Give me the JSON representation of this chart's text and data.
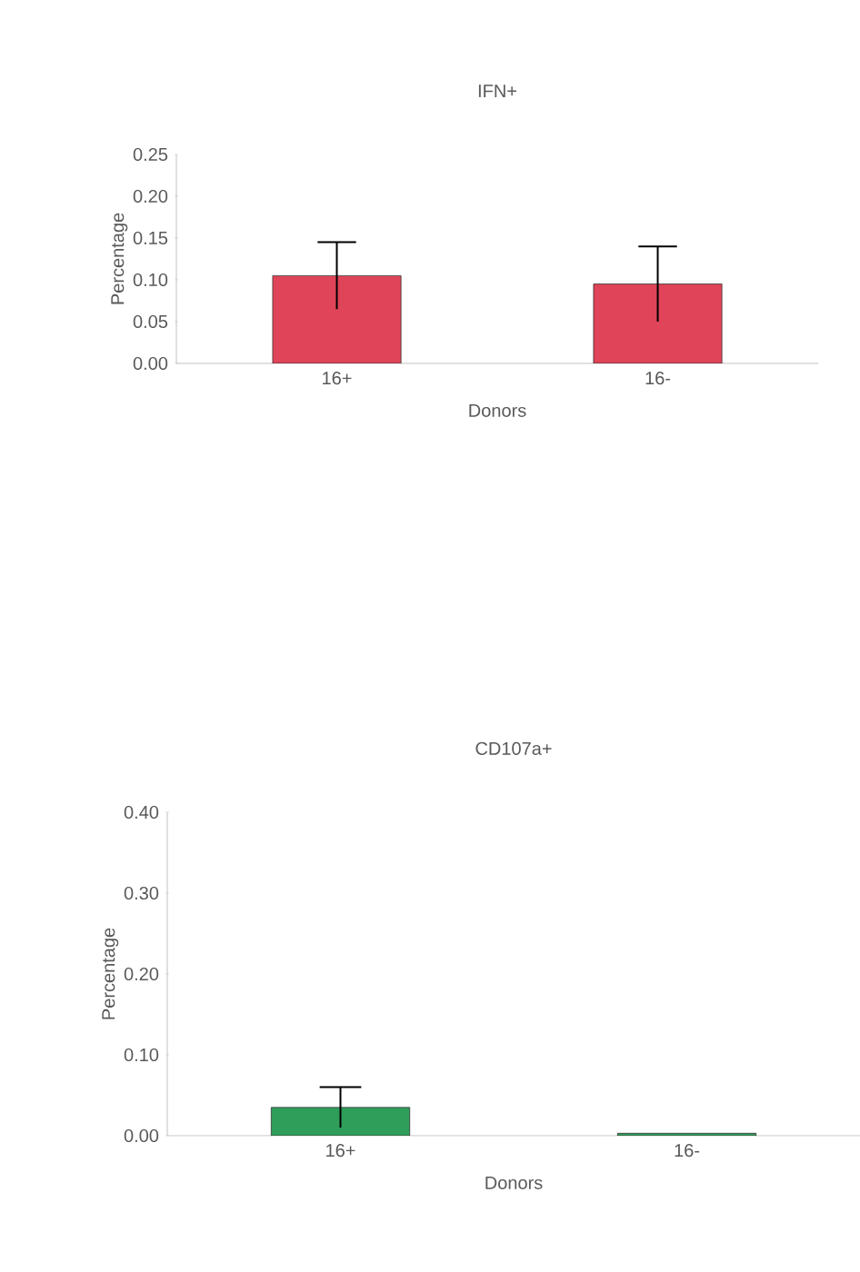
{
  "chart_data": [
    {
      "type": "bar",
      "title": "IFN+",
      "xlabel": "Donors",
      "ylabel": "Percentage",
      "categories": [
        "16+",
        "16-"
      ],
      "values": [
        0.105,
        0.095
      ],
      "errors": [
        0.04,
        0.045
      ],
      "color": "#e04458",
      "ylim": [
        0,
        0.25
      ],
      "yticks": [
        {
          "value": 0,
          "label": "0.00"
        },
        {
          "value": 0.05,
          "label": "0.05"
        },
        {
          "value": 0.1,
          "label": "0.10"
        },
        {
          "value": 0.15,
          "label": "0.15"
        },
        {
          "value": 0.2,
          "label": "0.20"
        },
        {
          "value": 0.25,
          "label": "0.25"
        }
      ]
    },
    {
      "type": "bar",
      "title": "CD107a+",
      "xlabel": "Donors",
      "ylabel": "Percentage",
      "categories": [
        "16+",
        "16-"
      ],
      "values": [
        0.035,
        0.003
      ],
      "errors": [
        0.025,
        null
      ],
      "color": "#2e9e5a",
      "ylim": [
        0,
        0.4
      ],
      "yticks": [
        {
          "value": 0,
          "label": "0.00"
        },
        {
          "value": 0.1,
          "label": "0.10"
        },
        {
          "value": 0.2,
          "label": "0.20"
        },
        {
          "value": 0.3,
          "label": "0.30"
        },
        {
          "value": 0.4,
          "label": "0.40"
        }
      ]
    }
  ]
}
